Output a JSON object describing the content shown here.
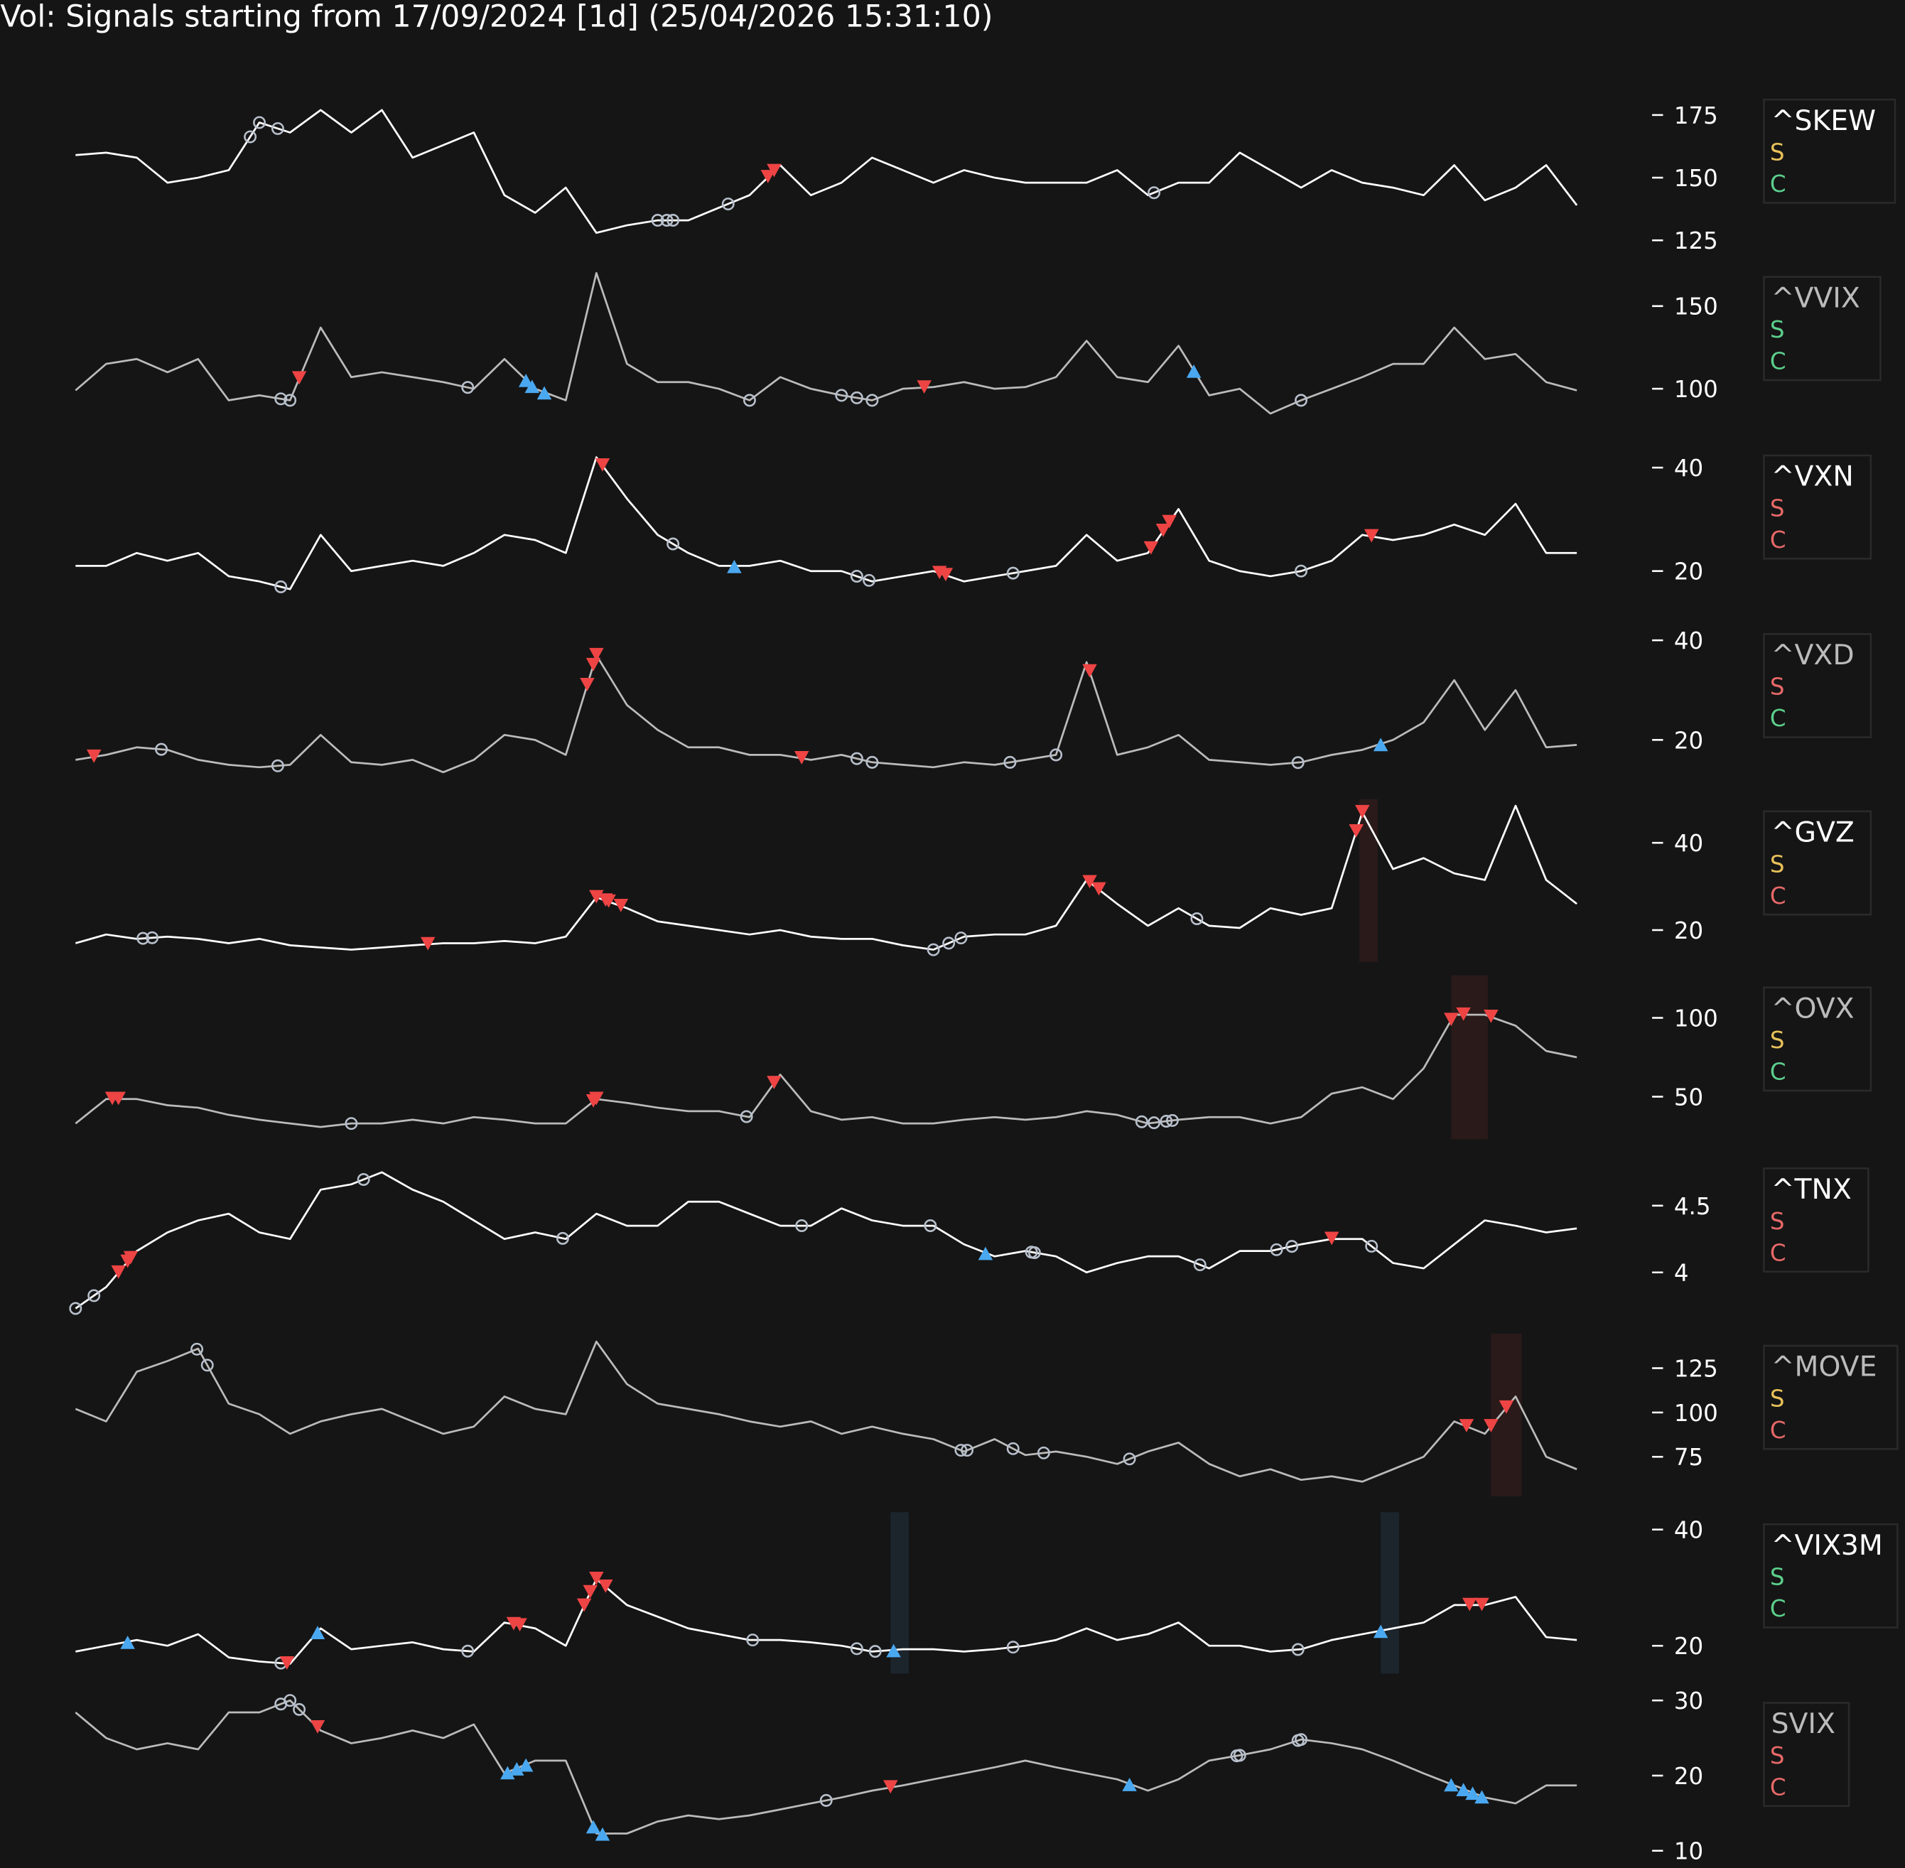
{
  "title": "Vol: Signals starting from 17/09/2024 [1d] (25/04/2026 15:31:10)",
  "colors": {
    "background": "#151515",
    "sell": "#ee4444",
    "buy": "#4aa8f0",
    "circle": "#b8c0cc",
    "legend_yellow": "#e8c15a",
    "legend_green": "#5ccf8c",
    "legend_red": "#e86868",
    "shade_red": "#2a1a1a",
    "shade_blue": "#1c242c"
  },
  "chart_data": {
    "type": "line",
    "x_range": [
      "17/09/2024",
      "25/04/2026"
    ],
    "grid": false,
    "legend_placement": "right",
    "panels": [
      {
        "name": "^SKEW",
        "line_color": "#ffffff",
        "legend": [
          {
            "text": "S",
            "color": "#e8c15a"
          },
          {
            "text": "C",
            "color": "#5ccf8c"
          }
        ],
        "ylim": [
          123,
          186
        ],
        "ticks": [
          175,
          150,
          125
        ],
        "values": [
          159,
          160,
          158,
          148,
          150,
          153,
          172,
          168,
          177,
          168,
          177,
          158,
          163,
          168,
          143,
          136,
          146,
          128,
          131,
          133,
          133,
          138,
          143,
          155,
          143,
          148,
          158,
          153,
          148,
          153,
          150,
          148,
          148,
          148,
          153,
          143,
          148,
          148,
          160,
          153,
          146,
          153,
          148,
          146,
          143,
          155,
          141,
          146,
          155,
          139
        ],
        "circles": [
          5.7,
          6.0,
          6.6,
          19.0,
          19.3,
          19.5,
          21.3,
          35.2
        ],
        "sells": [
          22.6,
          22.8
        ],
        "buys": [],
        "shades": []
      },
      {
        "name": "^VVIX",
        "line_color": "#bbbbbb",
        "legend": [
          {
            "text": "S",
            "color": "#5ccf8c"
          },
          {
            "text": "C",
            "color": "#5ccf8c"
          }
        ],
        "ylim": [
          78,
          175
        ],
        "ticks": [
          150,
          100
        ],
        "values": [
          99,
          115,
          118,
          110,
          118,
          93,
          96,
          93,
          137,
          107,
          110,
          107,
          104,
          100,
          118,
          100,
          93,
          170,
          115,
          104,
          104,
          100,
          93,
          107,
          100,
          96,
          93,
          100,
          101,
          104,
          100,
          101,
          107,
          129,
          107,
          104,
          126,
          96,
          100,
          85,
          93,
          100,
          107,
          115,
          115,
          137,
          118,
          121,
          104,
          99
        ],
        "circles": [
          6.7,
          7.0,
          12.8,
          22.0,
          25.0,
          25.5,
          26.0,
          40.0
        ],
        "sells": [
          7.3,
          27.7
        ],
        "buys": [
          14.7,
          14.9,
          15.3,
          36.5
        ],
        "shades": []
      },
      {
        "name": "^VXN",
        "line_color": "#ffffff",
        "legend": [
          {
            "text": "S",
            "color": "#e86868"
          },
          {
            "text": "C",
            "color": "#e86868"
          }
        ],
        "ylim": [
          13.7,
          44.7
        ],
        "ticks": [
          40,
          20
        ],
        "values": [
          21,
          21,
          23.5,
          22,
          23.5,
          19,
          18,
          16.5,
          27,
          20,
          21,
          22,
          21,
          23.5,
          27,
          26,
          23.5,
          42,
          34,
          27,
          23.5,
          21,
          21,
          22,
          20,
          20,
          18,
          19,
          20,
          18,
          19,
          20,
          21,
          27,
          22,
          23.5,
          32,
          22,
          20,
          19,
          20,
          22,
          27,
          26,
          27,
          29,
          27,
          33,
          23.5,
          23.5
        ],
        "circles": [
          6.7,
          19.5,
          25.5,
          25.9,
          30.6,
          40.0
        ],
        "sells": [
          17.2,
          28.2,
          28.4,
          35.1,
          35.5,
          35.7,
          42.3
        ],
        "buys": [
          21.5
        ],
        "shades": []
      },
      {
        "name": "^VXD",
        "line_color": "#bbbbbb",
        "legend": [
          {
            "text": "S",
            "color": "#e86868"
          },
          {
            "text": "C",
            "color": "#5ccf8c"
          }
        ],
        "ylim": [
          12,
          43.7
        ],
        "ticks": [
          40,
          20
        ],
        "values": [
          16,
          17,
          18.5,
          18,
          16,
          15,
          14.5,
          15,
          21,
          15.5,
          15,
          16,
          13.5,
          16,
          21,
          20,
          17,
          37,
          27,
          22,
          18.5,
          18.5,
          17,
          17,
          16,
          17,
          15.5,
          15,
          14.5,
          15.5,
          15,
          16,
          17,
          35.6,
          17,
          18.5,
          21,
          16,
          15.5,
          15,
          15.5,
          17,
          18,
          20,
          23.5,
          32,
          22,
          30,
          18.5,
          19
        ],
        "circles": [
          2.8,
          6.6,
          25.5,
          26.0,
          30.5,
          32.0,
          39.9
        ],
        "sells": [
          0.6,
          16.7,
          16.9,
          17.0,
          23.7,
          33.1
        ],
        "buys": [
          42.6
        ],
        "shades": []
      },
      {
        "name": "^GVZ",
        "line_color": "#ffffff",
        "legend": [
          {
            "text": "S",
            "color": "#e8c15a"
          },
          {
            "text": "C",
            "color": "#e86868"
          }
        ],
        "ylim": [
          12.7,
          50
        ],
        "ticks": [
          40,
          20
        ],
        "values": [
          17,
          19,
          18,
          18.5,
          18,
          17,
          18,
          16.5,
          16,
          15.5,
          16,
          16.5,
          17,
          17,
          17.5,
          17,
          18.5,
          27.5,
          25,
          22,
          21,
          20,
          19,
          20,
          18.5,
          18,
          18,
          16.5,
          15.5,
          18.5,
          19,
          19,
          21,
          31.5,
          26,
          21,
          25,
          21,
          20.5,
          25,
          23.5,
          25,
          47,
          34,
          36.5,
          33,
          31.5,
          48.5,
          31.5,
          26
        ],
        "circles": [
          2.2,
          2.5,
          28.0,
          28.5,
          28.9,
          36.6
        ],
        "sells": [
          11.5,
          17.0,
          17.3,
          17.4,
          17.8,
          33.1,
          33.4,
          41.8,
          42.0
        ],
        "buys": [],
        "shades": [
          {
            "from": 41.9,
            "to": 42.5,
            "color": "#2a1a1a"
          }
        ]
      },
      {
        "name": "^OVX",
        "line_color": "#bbbbbb",
        "legend": [
          {
            "text": "S",
            "color": "#e8c15a"
          },
          {
            "text": "C",
            "color": "#5ccf8c"
          }
        ],
        "ylim": [
          23,
          127
        ],
        "ticks": [
          100,
          50
        ],
        "values": [
          33,
          48.5,
          48.5,
          44.6,
          43,
          38.5,
          35.4,
          33,
          30.8,
          33,
          33,
          35.4,
          33,
          37,
          35.4,
          33,
          33,
          48.5,
          46,
          43,
          40.8,
          40.8,
          37,
          64,
          40.8,
          35.4,
          37,
          33,
          33,
          35.4,
          37,
          35.4,
          37,
          40.8,
          38.5,
          33,
          35.4,
          37,
          37,
          33,
          37,
          52,
          56,
          48.5,
          68,
          102,
          102,
          95,
          79,
          75
        ],
        "circles": [
          9.0,
          21.9,
          34.8,
          35.2,
          35.6,
          35.8
        ],
        "sells": [
          1.2,
          1.4,
          16.9,
          17.0,
          22.8,
          44.9,
          45.3,
          46.2
        ],
        "buys": [],
        "shades": [
          {
            "from": 44.9,
            "to": 46.1,
            "color": "#2a1a1a"
          }
        ]
      },
      {
        "name": "^TNX",
        "line_color": "#ffffff",
        "legend": [
          {
            "text": "S",
            "color": "#e86868"
          },
          {
            "text": "C",
            "color": "#e86868"
          }
        ],
        "ylim": [
          3.66,
          4.87
        ],
        "ticks": [
          4.5,
          4.0
        ],
        "values": [
          3.73,
          3.89,
          4.16,
          4.3,
          4.39,
          4.44,
          4.3,
          4.25,
          4.62,
          4.66,
          4.75,
          4.62,
          4.53,
          4.39,
          4.25,
          4.3,
          4.25,
          4.44,
          4.35,
          4.35,
          4.53,
          4.53,
          4.44,
          4.35,
          4.35,
          4.48,
          4.39,
          4.35,
          4.35,
          4.21,
          4.12,
          4.16,
          4.12,
          4.0,
          4.07,
          4.12,
          4.12,
          4.03,
          4.16,
          4.16,
          4.21,
          4.25,
          4.25,
          4.07,
          4.03,
          4.21,
          4.39,
          4.35,
          4.3,
          4.33
        ],
        "circles": [
          0.0,
          0.6,
          9.4,
          15.9,
          23.7,
          27.9,
          31.2,
          31.3,
          36.7,
          39.2,
          39.7,
          42.3
        ],
        "sells": [
          1.4,
          1.7,
          1.8,
          41.0
        ],
        "buys": [
          29.7
        ],
        "shades": []
      },
      {
        "name": "^MOVE",
        "line_color": "#bbbbbb",
        "legend": [
          {
            "text": "S",
            "color": "#e8c15a"
          },
          {
            "text": "C",
            "color": "#e86868"
          }
        ],
        "ylim": [
          52.7,
          144.5
        ],
        "ticks": [
          125,
          100,
          75
        ],
        "values": [
          102,
          95,
          123,
          129,
          136,
          105,
          99,
          88,
          95,
          99,
          102,
          95,
          88,
          92,
          109,
          102,
          99,
          140,
          116,
          105,
          102,
          99,
          95,
          92,
          95,
          88,
          92,
          88,
          85,
          78,
          85,
          76,
          78,
          75,
          71,
          78,
          83,
          71,
          64,
          68,
          62,
          64,
          61,
          68,
          75,
          95,
          88,
          109,
          75,
          68
        ],
        "circles": [
          3.96,
          4.3,
          28.9,
          29.1,
          30.6,
          31.6,
          34.4
        ],
        "sells": [
          45.4,
          46.2,
          46.7
        ],
        "buys": [],
        "shades": [
          {
            "from": 46.2,
            "to": 47.2,
            "color": "#2a1a1a"
          }
        ]
      },
      {
        "name": "^VIX3M",
        "line_color": "#ffffff",
        "legend": [
          {
            "text": "S",
            "color": "#5ccf8c"
          },
          {
            "text": "C",
            "color": "#5ccf8c"
          }
        ],
        "ylim": [
          15.2,
          43
        ],
        "ticks": [
          40,
          20
        ],
        "values": [
          19,
          20,
          21,
          20,
          22,
          18,
          17.3,
          16.9,
          23,
          19.4,
          20,
          20.6,
          19.4,
          19,
          24,
          23,
          20,
          31.5,
          27,
          25,
          23,
          22,
          21,
          21,
          20.6,
          20,
          19,
          19.4,
          19.4,
          19,
          19.4,
          20,
          21,
          23,
          21,
          22,
          24,
          20,
          20,
          19,
          19.4,
          21,
          22,
          23,
          24,
          27,
          27,
          28.4,
          21.5,
          21
        ],
        "circles": [
          6.7,
          12.8,
          22.1,
          25.5,
          26.1,
          30.6,
          39.9
        ],
        "sells": [
          6.9,
          14.3,
          14.5,
          16.6,
          16.8,
          17.0,
          17.3,
          45.5,
          45.9
        ],
        "buys": [
          1.7,
          7.9,
          26.7,
          42.6
        ],
        "shades": [
          {
            "from": 26.6,
            "to": 27.2,
            "color": "#1c242c"
          },
          {
            "from": 42.6,
            "to": 43.2,
            "color": "#1c242c"
          }
        ]
      },
      {
        "name": "SVIX",
        "line_color": "#bbbbbb",
        "legend": [
          {
            "text": "S",
            "color": "#e86868"
          },
          {
            "text": "C",
            "color": "#e86868"
          }
        ],
        "ylim": [
          9,
          31.3
        ],
        "ticks": [
          30,
          20,
          10
        ],
        "values": [
          28.4,
          25,
          23.5,
          24.3,
          23.5,
          28.4,
          28.4,
          30,
          26,
          24.3,
          25,
          26,
          25,
          26.8,
          20.3,
          22,
          22,
          12.3,
          12.3,
          13.9,
          14.7,
          14.2,
          14.7,
          15.5,
          16.3,
          17.1,
          18,
          18.7,
          19.5,
          20.3,
          21.1,
          22,
          21.1,
          20.3,
          19.5,
          18,
          19.5,
          22,
          22.7,
          23.5,
          24.8,
          24.3,
          23.5,
          22,
          20.3,
          18.7,
          17.1,
          16.3,
          18.7,
          18.7
        ],
        "circles": [
          6.7,
          7.0,
          7.3,
          24.5,
          37.9,
          38.0,
          39.9,
          40.0
        ],
        "sells": [
          7.9,
          26.6
        ],
        "buys": [
          14.1,
          14.4,
          14.7,
          16.9,
          17.2,
          34.4,
          44.9,
          45.3,
          45.6,
          45.9
        ],
        "shades": []
      }
    ]
  }
}
